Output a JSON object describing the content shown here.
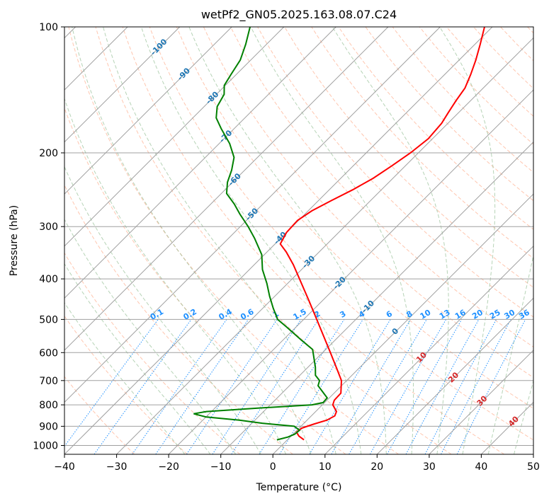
{
  "chart_data": {
    "type": "line",
    "title": "wetPf2_GN05.2025.163.08.07.C24",
    "xlabel": "Temperature (°C)",
    "ylabel": "Pressure (hPa)",
    "xlim": [
      -40,
      50
    ],
    "ylim": [
      1050,
      100
    ],
    "y_scale": "log",
    "x_ticks": [
      "−40",
      "−30",
      "−20",
      "−10",
      "0",
      "10",
      "20",
      "30",
      "40",
      "50"
    ],
    "y_ticks": [
      "100",
      "200",
      "300",
      "400",
      "500",
      "600",
      "700",
      "800",
      "900",
      "1000"
    ],
    "grid": true,
    "series": [
      {
        "color": "#ff0000",
        "points": [
          [
            970,
            3.2
          ],
          [
            950,
            1.5
          ],
          [
            930,
            0.3
          ],
          [
            910,
            0.5
          ],
          [
            890,
            2.0
          ],
          [
            870,
            3.8
          ],
          [
            850,
            4.5
          ],
          [
            830,
            4.0
          ],
          [
            800,
            2.0
          ],
          [
            780,
            1.4
          ],
          [
            750,
            1.3
          ],
          [
            700,
            -1.0
          ],
          [
            650,
            -4.6
          ],
          [
            600,
            -8.5
          ],
          [
            550,
            -12.8
          ],
          [
            500,
            -17.5
          ],
          [
            450,
            -22.7
          ],
          [
            400,
            -28.6
          ],
          [
            370,
            -32.5
          ],
          [
            345,
            -36.3
          ],
          [
            330,
            -39.0
          ],
          [
            310,
            -40.0
          ],
          [
            290,
            -40.2
          ],
          [
            275,
            -39.3
          ],
          [
            260,
            -37.5
          ],
          [
            245,
            -35.5
          ],
          [
            230,
            -33.8
          ],
          [
            215,
            -32.6
          ],
          [
            200,
            -31.5
          ],
          [
            185,
            -30.8
          ],
          [
            170,
            -31.2
          ],
          [
            160,
            -32.0
          ],
          [
            150,
            -32.8
          ],
          [
            140,
            -33.5
          ],
          [
            130,
            -35.0
          ],
          [
            120,
            -36.8
          ],
          [
            110,
            -39.0
          ],
          [
            100,
            -41.5
          ]
        ]
      },
      {
        "color": "#008000",
        "points": [
          [
            970,
            -2.0
          ],
          [
            955,
            -0.4
          ],
          [
            940,
            0.3
          ],
          [
            920,
            0.5
          ],
          [
            900,
            -1.3
          ],
          [
            885,
            -8.0
          ],
          [
            870,
            -13.0
          ],
          [
            855,
            -20.0
          ],
          [
            840,
            -23.0
          ],
          [
            830,
            -21.0
          ],
          [
            815,
            -12.0
          ],
          [
            800,
            -2.0
          ],
          [
            790,
            -0.3
          ],
          [
            770,
            -0.4
          ],
          [
            750,
            -2.0
          ],
          [
            720,
            -4.5
          ],
          [
            700,
            -5.2
          ],
          [
            680,
            -7.0
          ],
          [
            650,
            -8.6
          ],
          [
            620,
            -10.5
          ],
          [
            590,
            -12.5
          ],
          [
            560,
            -16.5
          ],
          [
            520,
            -22.0
          ],
          [
            500,
            -25.0
          ],
          [
            470,
            -28.0
          ],
          [
            440,
            -31.0
          ],
          [
            410,
            -34.0
          ],
          [
            380,
            -37.5
          ],
          [
            350,
            -40.5
          ],
          [
            320,
            -45.0
          ],
          [
            300,
            -48.5
          ],
          [
            280,
            -52.5
          ],
          [
            265,
            -55.5
          ],
          [
            250,
            -59.0
          ],
          [
            235,
            -61.0
          ],
          [
            220,
            -62.5
          ],
          [
            205,
            -64.5
          ],
          [
            190,
            -68.0
          ],
          [
            175,
            -72.5
          ],
          [
            165,
            -75.5
          ],
          [
            155,
            -77.5
          ],
          [
            145,
            -78.5
          ],
          [
            138,
            -80.2
          ],
          [
            130,
            -81.0
          ],
          [
            120,
            -82.0
          ],
          [
            110,
            -84.0
          ],
          [
            100,
            -86.5
          ]
        ]
      }
    ],
    "dry_adiabat_labels": [
      "-100",
      "-90",
      "-80",
      "-70",
      "-60",
      "-50",
      "-40",
      "-30",
      "-20",
      "-10",
      "0",
      "10",
      "20",
      "30",
      "40"
    ],
    "mixing_ratio_labels": [
      "0.1",
      "0.2",
      "0.4",
      "0.6",
      "1",
      "1.5",
      "2",
      "3",
      "4",
      "6",
      "8",
      "10",
      "13",
      "16",
      "20",
      "25",
      "30",
      "36"
    ],
    "colors": {
      "temperature": "#ff0000",
      "dewpoint": "#008000",
      "dry_adiabat": "#ffa07a",
      "moist_adiabat": "#8fbc8f",
      "mixing_ratio": "#1e90ff",
      "isotherm": "#a0a0a0",
      "dry_label": "#1f77b4",
      "moist_label": "#d62728",
      "zero_label": "#808080"
    }
  }
}
